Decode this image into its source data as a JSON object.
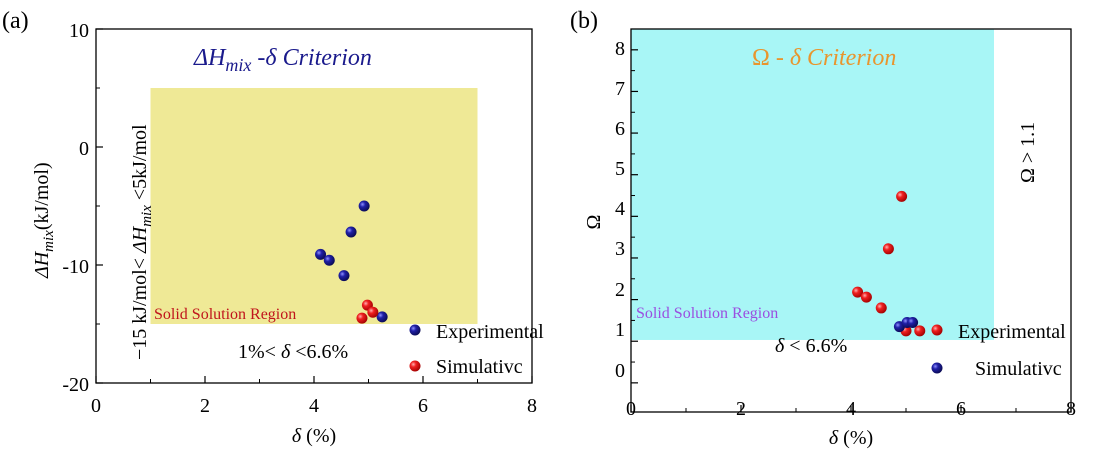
{
  "chart_data": [
    {
      "type": "scatter",
      "panel_label": "(a)",
      "title": "ΔHmix -δ Criterion",
      "xlabel": "δ (%)",
      "ylabel": "ΔHmix(kJ/mol)",
      "xlim": [
        0,
        8
      ],
      "ylim": [
        -20,
        10
      ],
      "xticks": [
        0,
        2,
        4,
        6,
        8
      ],
      "yticks": [
        10,
        0,
        -10,
        -20
      ],
      "region": {
        "label": "Solid Solution Region",
        "x": [
          1,
          7
        ],
        "y": [
          -15,
          5
        ],
        "color": "#efe996",
        "label_color": "#c0141c"
      },
      "vertical_note": "−15 kJ/mol< ΔHmix <5kJ/mol",
      "bottom_note": "1%< δ <6.6%",
      "legend_position": "bottom-right",
      "series": [
        {
          "name": "Experimental",
          "color": "#1d1d8f",
          "points": [
            [
              4.92,
              -5.0
            ],
            [
              4.68,
              -7.2
            ],
            [
              4.12,
              -9.1
            ],
            [
              4.28,
              -9.6
            ],
            [
              4.55,
              -10.9
            ],
            [
              5.25,
              -14.4
            ]
          ]
        },
        {
          "name": "Simulativc",
          "color": "#e8161b",
          "points": [
            [
              4.98,
              -13.4
            ],
            [
              5.08,
              -14.0
            ],
            [
              4.88,
              -14.5
            ]
          ]
        }
      ]
    },
    {
      "type": "scatter",
      "panel_label": "(b)",
      "title": "Ω - δ Criterion",
      "xlabel": "δ (%)",
      "ylabel": "Ω",
      "xlim": [
        0,
        8
      ],
      "ylim": [
        -0.7,
        8.5
      ],
      "xticks": [
        0,
        2,
        4,
        6,
        8
      ],
      "yticks": [
        0,
        1,
        2,
        3,
        4,
        5,
        6,
        7,
        8
      ],
      "region": {
        "label": "Solid Solution Region",
        "x": [
          0,
          6.6
        ],
        "y": [
          1.03,
          8.5
        ],
        "color": "#a8f6f6",
        "label_color": "#9a4fe0"
      },
      "vertical_note": "Ω > 1.1",
      "bottom_note": "δ < 6.6%",
      "legend_position": "bottom-right",
      "series": [
        {
          "name": "Experimental",
          "color": "#e8161b",
          "points": [
            [
              4.92,
              4.48
            ],
            [
              4.68,
              3.22
            ],
            [
              4.12,
              2.18
            ],
            [
              4.28,
              2.06
            ],
            [
              4.55,
              1.8
            ],
            [
              5.25,
              1.25
            ],
            [
              5.0,
              1.25
            ]
          ]
        },
        {
          "name": "Simulativc",
          "color": "#1d1d8f",
          "points": [
            [
              4.88,
              1.35
            ],
            [
              5.02,
              1.45
            ],
            [
              5.12,
              1.45
            ]
          ]
        }
      ]
    }
  ]
}
